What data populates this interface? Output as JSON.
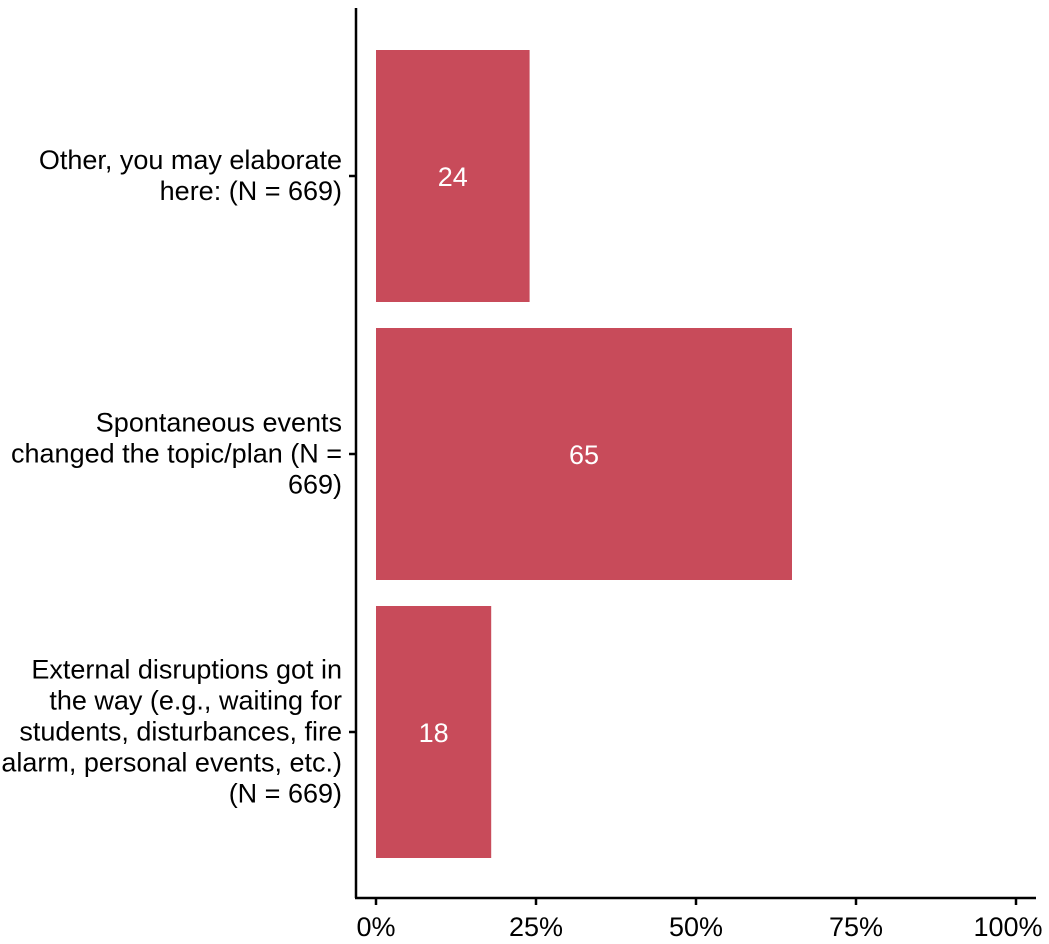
{
  "chart_data": {
    "type": "bar",
    "orientation": "horizontal",
    "categories": [
      "Other, you may elaborate here: (N = 669)",
      "Spontaneous events changed the topic/plan (N = 669)",
      "External disruptions got in the way (e.g., waiting for students, disturbances, fire alarm, personal events, etc.) (N = 669)"
    ],
    "values": [
      24,
      65,
      18
    ],
    "data_labels": [
      "24",
      "65",
      "18"
    ],
    "x_ticks": [
      "0%",
      "25%",
      "50%",
      "75%",
      "100%"
    ],
    "xlim": [
      0,
      100
    ],
    "title": "",
    "xlabel": "",
    "ylabel": "",
    "grid": false,
    "bar_color": "#c84b5a",
    "label_color": "#ffffff"
  }
}
